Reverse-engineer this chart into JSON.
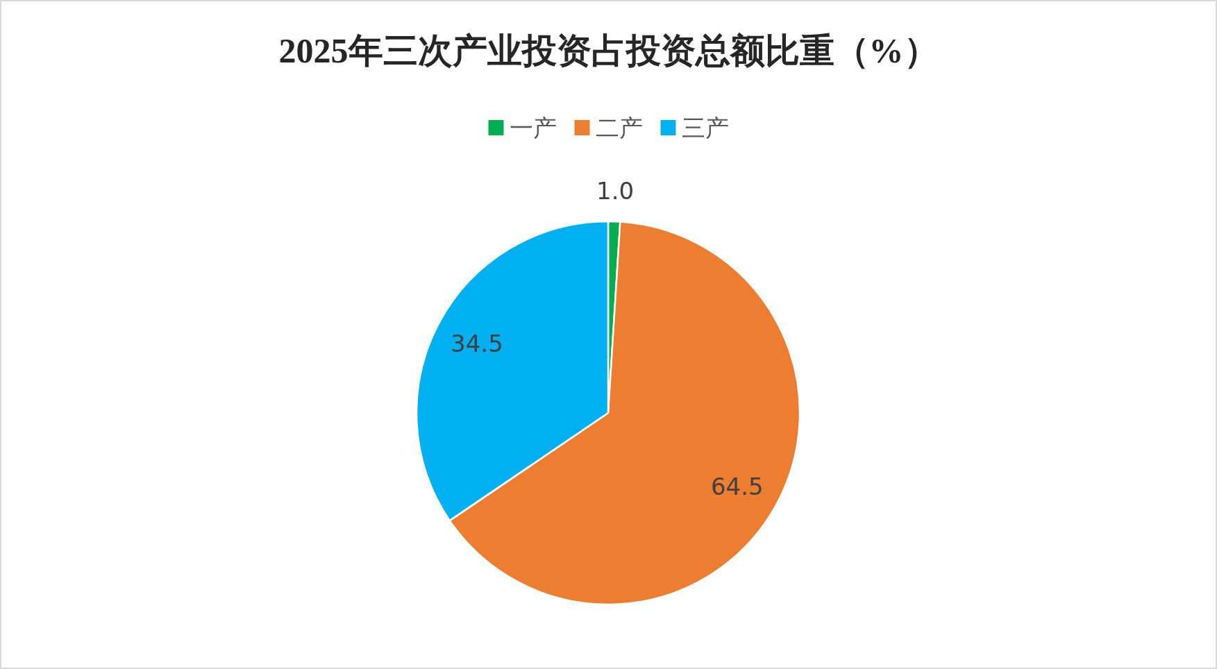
{
  "chart_data": {
    "type": "pie",
    "title": "2025年三次产业投资占投资总额比重（%）",
    "categories": [
      "一产",
      "二产",
      "三产"
    ],
    "values": [
      1.0,
      64.5,
      34.5
    ],
    "colors": [
      "#00b050",
      "#ed7d31",
      "#00b0f0"
    ],
    "value_labels": [
      "1.0",
      "64.5",
      "34.5"
    ],
    "legend": "top"
  }
}
